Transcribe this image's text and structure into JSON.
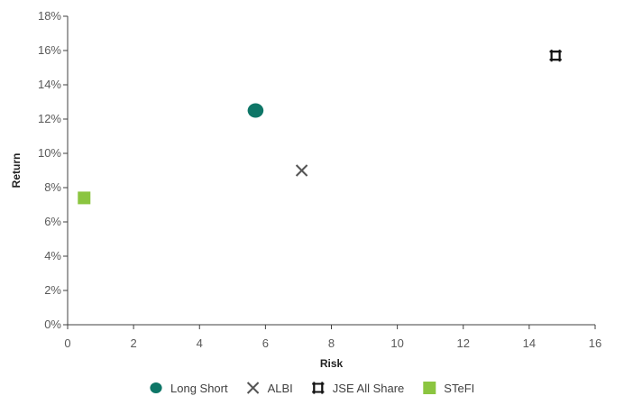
{
  "chart_data": {
    "type": "scatter",
    "title": "",
    "xlabel": "Risk",
    "ylabel": "Return",
    "xlim": [
      0,
      16
    ],
    "ylim": [
      0,
      18
    ],
    "xticks": [
      0,
      2,
      4,
      6,
      8,
      10,
      12,
      14,
      16
    ],
    "xtick_labels": [
      "0",
      "2",
      "4",
      "6",
      "8",
      "10",
      "12",
      "14",
      "16"
    ],
    "yticks": [
      0,
      2,
      4,
      6,
      8,
      10,
      12,
      14,
      16,
      18
    ],
    "ytick_labels": [
      "0%",
      "2%",
      "4%",
      "6%",
      "8%",
      "10%",
      "12%",
      "14%",
      "16%",
      "18%"
    ],
    "grid": false,
    "legend_position": "bottom",
    "series": [
      {
        "name": "Long Short",
        "marker": "circle",
        "color": "#0e7667",
        "x": 5.7,
        "y": 12.5
      },
      {
        "name": "ALBI",
        "marker": "x",
        "color": "#555555",
        "x": 7.1,
        "y": 9.0
      },
      {
        "name": "JSE All Share",
        "marker": "hash-square",
        "color": "#111111",
        "x": 14.8,
        "y": 15.7
      },
      {
        "name": "STeFI",
        "marker": "square",
        "color": "#8bc540",
        "x": 0.5,
        "y": 7.4
      }
    ]
  }
}
